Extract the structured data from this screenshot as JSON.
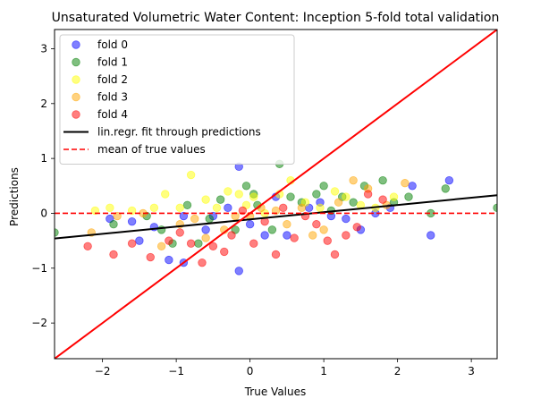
{
  "chart_data": {
    "type": "scatter",
    "title": "Unsaturated Volumetric Water Content: Inception 5-fold total validation",
    "xlabel": "True Values",
    "ylabel": "Predictions",
    "xlim": [
      -2.65,
      3.35
    ],
    "ylim": [
      -2.65,
      3.35
    ],
    "xticks": [
      -2,
      -1,
      0,
      1,
      2,
      3
    ],
    "yticks": [
      -2,
      -1,
      0,
      1,
      2,
      3
    ],
    "grid": false,
    "legend_position": "top-left",
    "series": [
      {
        "name": "fold 0",
        "color": "#0000ff",
        "points": [
          [
            -1.9,
            -0.1
          ],
          [
            -1.6,
            -0.15
          ],
          [
            -1.5,
            -0.5
          ],
          [
            -1.3,
            -0.25
          ],
          [
            -1.1,
            -0.85
          ],
          [
            -0.9,
            -0.9
          ],
          [
            -0.9,
            -0.05
          ],
          [
            -0.6,
            -0.3
          ],
          [
            -0.5,
            -0.05
          ],
          [
            -0.3,
            0.1
          ],
          [
            -0.15,
            0.85
          ],
          [
            -0.15,
            -1.05
          ],
          [
            0.0,
            -0.2
          ],
          [
            0.2,
            -0.4
          ],
          [
            0.35,
            0.3
          ],
          [
            0.5,
            -0.4
          ],
          [
            0.8,
            0.1
          ],
          [
            0.95,
            0.2
          ],
          [
            1.1,
            -0.05
          ],
          [
            1.3,
            -0.1
          ],
          [
            1.5,
            -0.3
          ],
          [
            1.7,
            0.0
          ],
          [
            1.9,
            0.1
          ],
          [
            2.2,
            0.5
          ],
          [
            2.45,
            -0.4
          ],
          [
            2.7,
            0.6
          ]
        ]
      },
      {
        "name": "fold 1",
        "color": "#008000",
        "points": [
          [
            -2.65,
            -0.35
          ],
          [
            -1.85,
            -0.2
          ],
          [
            -1.4,
            -0.05
          ],
          [
            -1.2,
            -0.3
          ],
          [
            -1.05,
            -0.55
          ],
          [
            -0.85,
            0.15
          ],
          [
            -0.7,
            -0.55
          ],
          [
            -0.55,
            -0.1
          ],
          [
            -0.4,
            0.25
          ],
          [
            -0.2,
            -0.3
          ],
          [
            -0.05,
            0.5
          ],
          [
            0.05,
            0.35
          ],
          [
            0.1,
            0.15
          ],
          [
            0.3,
            -0.3
          ],
          [
            0.4,
            0.9
          ],
          [
            0.55,
            0.3
          ],
          [
            0.7,
            0.2
          ],
          [
            0.9,
            0.35
          ],
          [
            1.0,
            0.5
          ],
          [
            1.1,
            0.05
          ],
          [
            1.25,
            0.3
          ],
          [
            1.4,
            0.2
          ],
          [
            1.55,
            0.5
          ],
          [
            1.8,
            0.6
          ],
          [
            1.95,
            0.2
          ],
          [
            2.15,
            0.3
          ],
          [
            2.45,
            0.0
          ],
          [
            2.65,
            0.45
          ],
          [
            3.35,
            0.1
          ]
        ]
      },
      {
        "name": "fold 2",
        "color": "#ffff00",
        "points": [
          [
            -2.1,
            0.05
          ],
          [
            -1.9,
            0.1
          ],
          [
            -1.6,
            0.05
          ],
          [
            -1.3,
            0.1
          ],
          [
            -1.15,
            0.35
          ],
          [
            -0.95,
            0.1
          ],
          [
            -0.8,
            0.7
          ],
          [
            -0.6,
            0.25
          ],
          [
            -0.45,
            0.1
          ],
          [
            -0.3,
            0.4
          ],
          [
            -0.15,
            0.35
          ],
          [
            -0.05,
            0.15
          ],
          [
            0.05,
            0.3
          ],
          [
            0.2,
            0.0
          ],
          [
            0.4,
            0.35
          ],
          [
            0.55,
            0.6
          ],
          [
            0.75,
            0.2
          ],
          [
            0.95,
            0.1
          ],
          [
            1.15,
            0.4
          ],
          [
            1.3,
            0.3
          ],
          [
            1.5,
            0.15
          ],
          [
            1.7,
            0.1
          ],
          [
            1.95,
            0.3
          ]
        ]
      },
      {
        "name": "fold 3",
        "color": "#ffa500",
        "points": [
          [
            -2.15,
            -0.35
          ],
          [
            -1.8,
            -0.05
          ],
          [
            -1.45,
            0.0
          ],
          [
            -1.2,
            -0.6
          ],
          [
            -0.95,
            -0.2
          ],
          [
            -0.75,
            -0.1
          ],
          [
            -0.6,
            -0.45
          ],
          [
            -0.35,
            -0.3
          ],
          [
            -0.2,
            -0.05
          ],
          [
            0.0,
            -0.05
          ],
          [
            0.15,
            0.1
          ],
          [
            0.35,
            0.05
          ],
          [
            0.5,
            -0.2
          ],
          [
            0.7,
            0.1
          ],
          [
            0.85,
            -0.4
          ],
          [
            1.0,
            -0.3
          ],
          [
            1.2,
            0.2
          ],
          [
            1.4,
            0.6
          ],
          [
            1.6,
            0.45
          ],
          [
            1.85,
            0.15
          ],
          [
            2.1,
            0.55
          ]
        ]
      },
      {
        "name": "fold 4",
        "color": "#ff0000",
        "points": [
          [
            -2.2,
            -0.6
          ],
          [
            -1.85,
            -0.75
          ],
          [
            -1.6,
            -0.55
          ],
          [
            -1.35,
            -0.8
          ],
          [
            -1.1,
            -0.5
          ],
          [
            -0.95,
            -0.35
          ],
          [
            -0.8,
            -0.55
          ],
          [
            -0.65,
            -0.9
          ],
          [
            -0.5,
            -0.6
          ],
          [
            -0.35,
            -0.7
          ],
          [
            -0.25,
            -0.4
          ],
          [
            -0.1,
            0.05
          ],
          [
            0.05,
            -0.55
          ],
          [
            0.2,
            -0.15
          ],
          [
            0.35,
            -0.75
          ],
          [
            0.45,
            0.1
          ],
          [
            0.6,
            -0.45
          ],
          [
            0.75,
            -0.05
          ],
          [
            0.9,
            -0.2
          ],
          [
            1.05,
            -0.5
          ],
          [
            1.15,
            -0.75
          ],
          [
            1.3,
            -0.4
          ],
          [
            1.45,
            -0.25
          ],
          [
            1.6,
            0.35
          ],
          [
            1.8,
            0.25
          ]
        ]
      }
    ],
    "lines": [
      {
        "name": "lin.regr. fit through predictions",
        "color": "#000000",
        "style": "solid",
        "x": [
          -2.65,
          3.35
        ],
        "y": [
          -0.46,
          0.33
        ]
      },
      {
        "name": "mean of true values",
        "color": "#ff0000",
        "style": "dashed",
        "x": [
          -2.65,
          3.35
        ],
        "y": [
          0.0,
          0.0
        ]
      },
      {
        "name": "",
        "color": "#ff0000",
        "style": "solid",
        "x": [
          -2.65,
          3.35
        ],
        "y": [
          -2.65,
          3.35
        ]
      }
    ],
    "legend": [
      {
        "label": "fold 0",
        "kind": "marker",
        "color": "#0000ff"
      },
      {
        "label": "fold 1",
        "kind": "marker",
        "color": "#008000"
      },
      {
        "label": "fold 2",
        "kind": "marker",
        "color": "#ffff00"
      },
      {
        "label": "fold 3",
        "kind": "marker",
        "color": "#ffa500"
      },
      {
        "label": "fold 4",
        "kind": "marker",
        "color": "#ff0000"
      },
      {
        "label": "lin.regr. fit through predictions",
        "kind": "line",
        "color": "#000000",
        "style": "solid"
      },
      {
        "label": "mean of true values",
        "kind": "line",
        "color": "#ff0000",
        "style": "dashed"
      }
    ]
  }
}
